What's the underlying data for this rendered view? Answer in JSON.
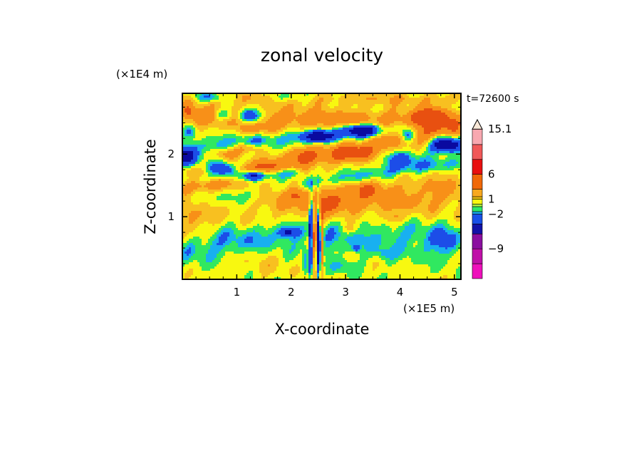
{
  "chart_data": {
    "type": "heatmap",
    "title": "zonal velocity",
    "xlabel": "X-coordinate",
    "ylabel": "Z-coordinate",
    "x_multiplier": "(×1E5 m)",
    "y_multiplier": "(×1E4 m)",
    "time_label": "t=72600 s",
    "xlim": [
      0,
      5.12
    ],
    "ylim": [
      0,
      2.97
    ],
    "x_ticks": [
      1,
      2,
      3,
      4,
      5
    ],
    "y_ticks": [
      1,
      2
    ],
    "colorbar": {
      "range": [
        -15,
        17
      ],
      "levels": [
        {
          "lo": -15,
          "hi": -12,
          "color": "#ee10bb"
        },
        {
          "lo": -12,
          "hi": -9,
          "color": "#c010a8"
        },
        {
          "lo": -9,
          "hi": -6,
          "color": "#8b0fa0"
        },
        {
          "lo": -6,
          "hi": -4,
          "color": "#1212a8"
        },
        {
          "lo": -4,
          "hi": -2,
          "color": "#1850e8"
        },
        {
          "lo": -2,
          "hi": -1.5,
          "color": "#16a8ee"
        },
        {
          "lo": -1.5,
          "hi": -0.5,
          "color": "#2ee868"
        },
        {
          "lo": -0.5,
          "hi": 0,
          "color": "#a8f040"
        },
        {
          "lo": 0,
          "hi": 1,
          "color": "#f8f810"
        },
        {
          "lo": 1,
          "hi": 1.5,
          "color": "#f0c010"
        },
        {
          "lo": 1.5,
          "hi": 3,
          "color": "#f8a820"
        },
        {
          "lo": 3,
          "hi": 6,
          "color": "#f06808"
        },
        {
          "lo": 6,
          "hi": 9,
          "color": "#e81010"
        },
        {
          "lo": 9,
          "hi": 12,
          "color": "#f05858"
        },
        {
          "lo": 12,
          "hi": 15.1,
          "color": "#f8a8b0"
        },
        {
          "lo": 15.1,
          "hi": 17,
          "color": "#f8e8d8"
        }
      ],
      "labels": [
        15.1,
        6,
        1,
        -2,
        -9
      ]
    },
    "field_levels": [
      {
        "thr": -4.5,
        "color": "#0a0aa0"
      },
      {
        "thr": -2,
        "color": "#1c4de8"
      },
      {
        "thr": -1.2,
        "color": "#18b0f0"
      },
      {
        "thr": -0.2,
        "color": "#30e860"
      },
      {
        "thr": 1.0,
        "color": "#f8f810"
      },
      {
        "thr": 2.2,
        "color": "#f8c020"
      },
      {
        "thr": 4.2,
        "color": "#f89018"
      },
      {
        "thr": 1000,
        "color": "#e85010"
      }
    ],
    "field_base": "#f8f810",
    "field_features": [
      {
        "kind": "band",
        "x0": 0.0,
        "x1": 5.12,
        "zc": 0.45,
        "zs": 0.28,
        "amp": -0.4,
        "slope": 0.0
      },
      {
        "kind": "blob",
        "x": 1.5,
        "z": 0.25,
        "sx": 0.5,
        "sz": 0.2,
        "amp": 1.0
      },
      {
        "kind": "band",
        "x0": 0.0,
        "x1": 2.2,
        "zc": 0.62,
        "zs": 0.22,
        "amp": -1.5,
        "slope": 0.15
      },
      {
        "kind": "band",
        "x0": 2.6,
        "x1": 5.12,
        "zc": 0.7,
        "zs": 0.28,
        "amp": -1.4,
        "slope": -0.05
      },
      {
        "kind": "band",
        "x0": 0.0,
        "x1": 5.12,
        "zc": 1.1,
        "zs": 0.22,
        "amp": 1.0,
        "slope": 0.05
      },
      {
        "kind": "band",
        "x0": 0.0,
        "x1": 1.5,
        "zc": 1.35,
        "zs": 0.12,
        "amp": -1.0,
        "slope": 0.0
      },
      {
        "kind": "band",
        "x0": 1.5,
        "x1": 2.4,
        "zc": 1.3,
        "zs": 0.18,
        "amp": 1.6,
        "slope": 0.0
      },
      {
        "kind": "band",
        "x0": 2.5,
        "x1": 5.12,
        "zc": 1.35,
        "zs": 0.25,
        "amp": 1.8,
        "slope": 0.1
      },
      {
        "kind": "band",
        "x0": 0.0,
        "x1": 1.7,
        "zc": 1.7,
        "zs": 0.12,
        "amp": 1.8,
        "slope": 0.1
      },
      {
        "kind": "band",
        "x0": 0.0,
        "x1": 2.2,
        "zc": 1.65,
        "zs": 0.09,
        "amp": -3.5,
        "slope": 0.05
      },
      {
        "kind": "band",
        "x0": 2.2,
        "x1": 5.12,
        "zc": 1.7,
        "zs": 0.1,
        "amp": -1.8,
        "slope": 0.12
      },
      {
        "kind": "band",
        "x0": 0.0,
        "x1": 5.12,
        "zc": 1.95,
        "zs": 0.18,
        "amp": 3.2,
        "slope": 0.2
      },
      {
        "kind": "band",
        "x0": 0.0,
        "x1": 5.12,
        "zc": 2.3,
        "zs": 0.12,
        "amp": -2.0,
        "slope": 0.08
      },
      {
        "kind": "band",
        "x0": 0.0,
        "x1": 5.12,
        "zc": 2.55,
        "zs": 0.18,
        "amp": 3.0,
        "slope": -0.02
      },
      {
        "kind": "band",
        "x0": 0.0,
        "x1": 5.12,
        "zc": 2.88,
        "zs": 0.1,
        "amp": 1.5,
        "slope": 0.0
      },
      {
        "kind": "blob",
        "x": 0.05,
        "z": 1.95,
        "sx": 0.2,
        "sz": 0.12,
        "amp": -8.0
      },
      {
        "kind": "blob",
        "x": 0.75,
        "z": 1.75,
        "sx": 0.25,
        "sz": 0.1,
        "amp": -7.0
      },
      {
        "kind": "blob",
        "x": 1.3,
        "z": 1.65,
        "sx": 0.18,
        "sz": 0.08,
        "amp": -5.5
      },
      {
        "kind": "blob",
        "x": 2.5,
        "z": 2.28,
        "sx": 0.3,
        "sz": 0.09,
        "amp": -6.0
      },
      {
        "kind": "blob",
        "x": 3.3,
        "z": 2.38,
        "sx": 0.32,
        "sz": 0.1,
        "amp": -8.0
      },
      {
        "kind": "blob",
        "x": 4.15,
        "z": 2.3,
        "sx": 0.15,
        "sz": 0.12,
        "amp": -6.0
      },
      {
        "kind": "blob",
        "x": 4.85,
        "z": 2.15,
        "sx": 0.28,
        "sz": 0.12,
        "amp": -9.0
      },
      {
        "kind": "blob",
        "x": 1.25,
        "z": 2.6,
        "sx": 0.22,
        "sz": 0.12,
        "amp": -7.0
      },
      {
        "kind": "blob",
        "x": 0.75,
        "z": 2.62,
        "sx": 0.18,
        "sz": 0.1,
        "amp": -4.0
      },
      {
        "kind": "blob",
        "x": 0.5,
        "z": 2.9,
        "sx": 0.3,
        "sz": 0.08,
        "amp": -3.5
      },
      {
        "kind": "blob",
        "x": 1.9,
        "z": 2.9,
        "sx": 0.35,
        "sz": 0.08,
        "amp": -2.5
      },
      {
        "kind": "blob",
        "x": 0.15,
        "z": 2.35,
        "sx": 0.12,
        "sz": 0.1,
        "amp": -3.0
      },
      {
        "kind": "blob",
        "x": 4.0,
        "z": 1.9,
        "sx": 0.35,
        "sz": 0.14,
        "amp": -3.5
      },
      {
        "kind": "blob",
        "x": 1.2,
        "z": 2.1,
        "sx": 0.25,
        "sz": 0.08,
        "amp": 3.0
      },
      {
        "kind": "blob",
        "x": 0.8,
        "z": 2.0,
        "sx": 0.25,
        "sz": 0.08,
        "amp": 2.5
      },
      {
        "kind": "blob",
        "x": 2.2,
        "z": 2.0,
        "sx": 0.3,
        "sz": 0.12,
        "amp": 2.5
      },
      {
        "kind": "blob",
        "x": 3.2,
        "z": 2.0,
        "sx": 0.35,
        "sz": 0.12,
        "amp": 3.0
      },
      {
        "kind": "blob",
        "x": 4.5,
        "z": 2.55,
        "sx": 0.35,
        "sz": 0.15,
        "amp": 3.5
      },
      {
        "kind": "blob",
        "x": 4.6,
        "z": 2.65,
        "sx": 0.22,
        "sz": 0.12,
        "amp": 2.5
      },
      {
        "kind": "blob",
        "x": 1.35,
        "z": 2.4,
        "sx": 0.3,
        "sz": 0.1,
        "amp": 2.0
      },
      {
        "kind": "blob",
        "x": 0.1,
        "z": 2.7,
        "sx": 0.12,
        "sz": 0.1,
        "amp": 2.5
      },
      {
        "kind": "blob",
        "x": 2.7,
        "z": 1.25,
        "sx": 0.35,
        "sz": 0.18,
        "amp": 2.5
      },
      {
        "kind": "blob",
        "x": 3.4,
        "z": 1.45,
        "sx": 0.35,
        "sz": 0.12,
        "amp": 2.5
      },
      {
        "kind": "blob",
        "x": 2.15,
        "z": 1.35,
        "sx": 0.2,
        "sz": 0.12,
        "amp": 2.5
      },
      {
        "kind": "blob",
        "x": 3.9,
        "z": 0.98,
        "sx": 0.2,
        "sz": 0.1,
        "amp": 2.0
      },
      {
        "kind": "blob",
        "x": 0.1,
        "z": 0.95,
        "sx": 0.25,
        "sz": 0.3,
        "amp": 1.5
      },
      {
        "kind": "blob",
        "x": 0.95,
        "z": 0.85,
        "sx": 0.35,
        "sz": 0.2,
        "amp": -0.8
      },
      {
        "kind": "blob",
        "x": 1.95,
        "z": 0.75,
        "sx": 0.25,
        "sz": 0.1,
        "amp": -2.2
      },
      {
        "kind": "blob",
        "x": 1.95,
        "z": 0.75,
        "sx": 0.08,
        "sz": 0.05,
        "amp": -4.0
      },
      {
        "kind": "blob",
        "x": 3.2,
        "z": 0.5,
        "sx": 0.06,
        "sz": 0.05,
        "amp": -3.5
      },
      {
        "kind": "blob",
        "x": 2.9,
        "z": 0.2,
        "sx": 0.25,
        "sz": 0.12,
        "amp": -1.4
      },
      {
        "kind": "blob",
        "x": 3.7,
        "z": 0.4,
        "sx": 0.15,
        "sz": 0.1,
        "amp": -1.5
      },
      {
        "kind": "blob",
        "x": 4.8,
        "z": 0.6,
        "sx": 0.25,
        "sz": 0.2,
        "amp": -1.6
      },
      {
        "kind": "blob",
        "x": 3.1,
        "z": 0.8,
        "sx": 0.15,
        "sz": 0.08,
        "amp": 1.8
      },
      {
        "kind": "blob",
        "x": 2.6,
        "z": 0.55,
        "sx": 0.25,
        "sz": 0.2,
        "amp": -0.8
      },
      {
        "kind": "blob",
        "x": 2.35,
        "z": 0.6,
        "sx": 0.03,
        "sz": 0.55,
        "amp": -6.0
      },
      {
        "kind": "blob",
        "x": 2.43,
        "z": 0.75,
        "sx": 0.03,
        "sz": 0.6,
        "amp": 6.0
      },
      {
        "kind": "blob",
        "x": 2.5,
        "z": 0.65,
        "sx": 0.03,
        "sz": 0.55,
        "amp": -7.5
      },
      {
        "kind": "blob",
        "x": 2.57,
        "z": 0.55,
        "sx": 0.03,
        "sz": 0.5,
        "amp": 4.0
      },
      {
        "kind": "blob",
        "x": 2.4,
        "z": 1.1,
        "sx": 0.05,
        "sz": 0.3,
        "amp": -5.0
      },
      {
        "kind": "blob",
        "x": 2.25,
        "z": 0.3,
        "sx": 0.05,
        "sz": 0.25,
        "amp": -2.0
      }
    ]
  }
}
